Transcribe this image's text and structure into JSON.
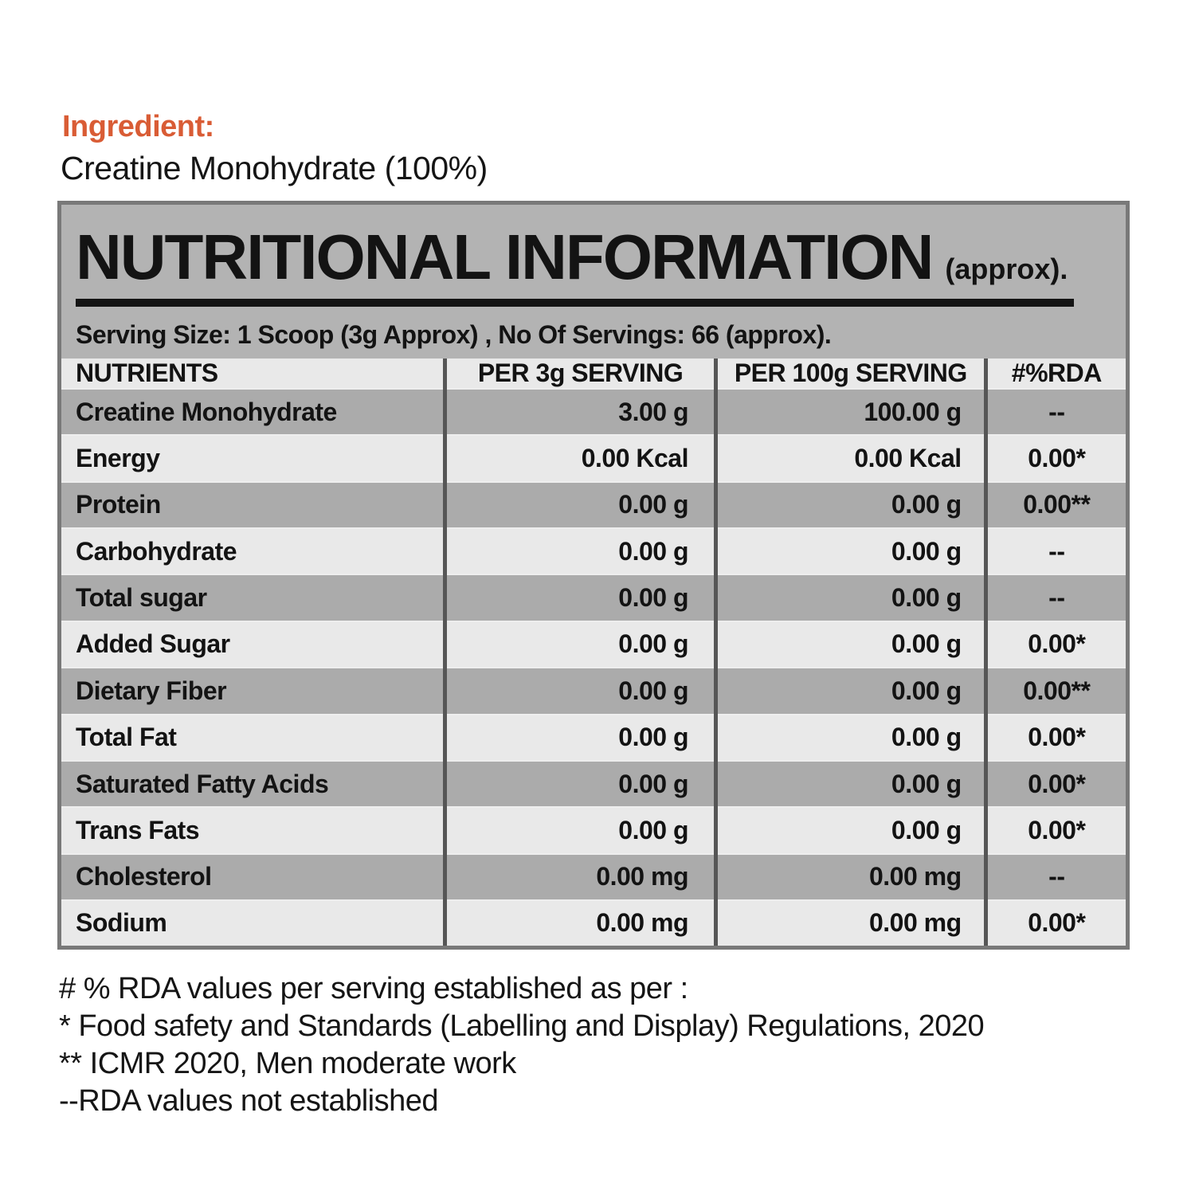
{
  "ingredient": {
    "label": "Ingredient:",
    "value": "Creatine Monohydrate (100%)"
  },
  "panel": {
    "title": "NUTRITIONAL INFORMATION",
    "title_suffix": "(approx).",
    "serving_line": "Serving Size: 1 Scoop (3g Approx) , No Of Servings: 66 (approx)."
  },
  "table": {
    "columns": [
      "NUTRIENTS",
      "PER 3g SERVING",
      "PER 100g SERVING",
      "#%RDA"
    ],
    "rows": [
      [
        "Creatine Monohydrate",
        "3.00 g",
        "100.00 g",
        "--"
      ],
      [
        "Energy",
        "0.00 Kcal",
        "0.00 Kcal",
        "0.00*"
      ],
      [
        "Protein",
        "0.00 g",
        "0.00 g",
        "0.00**"
      ],
      [
        "Carbohydrate",
        "0.00 g",
        "0.00 g",
        "--"
      ],
      [
        "Total sugar",
        "0.00 g",
        "0.00 g",
        "--"
      ],
      [
        "Added Sugar",
        "0.00 g",
        "0.00 g",
        "0.00*"
      ],
      [
        "Dietary Fiber",
        "0.00 g",
        "0.00 g",
        "0.00**"
      ],
      [
        "Total Fat",
        "0.00 g",
        "0.00 g",
        "0.00*"
      ],
      [
        "Saturated Fatty Acids",
        "0.00 g",
        "0.00 g",
        "0.00*"
      ],
      [
        "Trans Fats",
        "0.00 g",
        "0.00 g",
        "0.00*"
      ],
      [
        "Cholesterol",
        "0.00 mg",
        "0.00 mg",
        "--"
      ],
      [
        "Sodium",
        "0.00 mg",
        "0.00 mg",
        "0.00*"
      ]
    ]
  },
  "footnotes": [
    "# % RDA values per serving established as per :",
    "* Food safety and Standards (Labelling and Display) Regulations, 2020",
    "** ICMR 2020, Men moderate work",
    "--RDA values not established"
  ],
  "colors": {
    "accent_orange": "#d95c35",
    "panel_gray": "#b3b3b3",
    "row_dark": "#ababab",
    "row_light": "#e9e9e9",
    "border_outer": "#797979",
    "border_inner": "#565656",
    "text_black": "#131313"
  }
}
